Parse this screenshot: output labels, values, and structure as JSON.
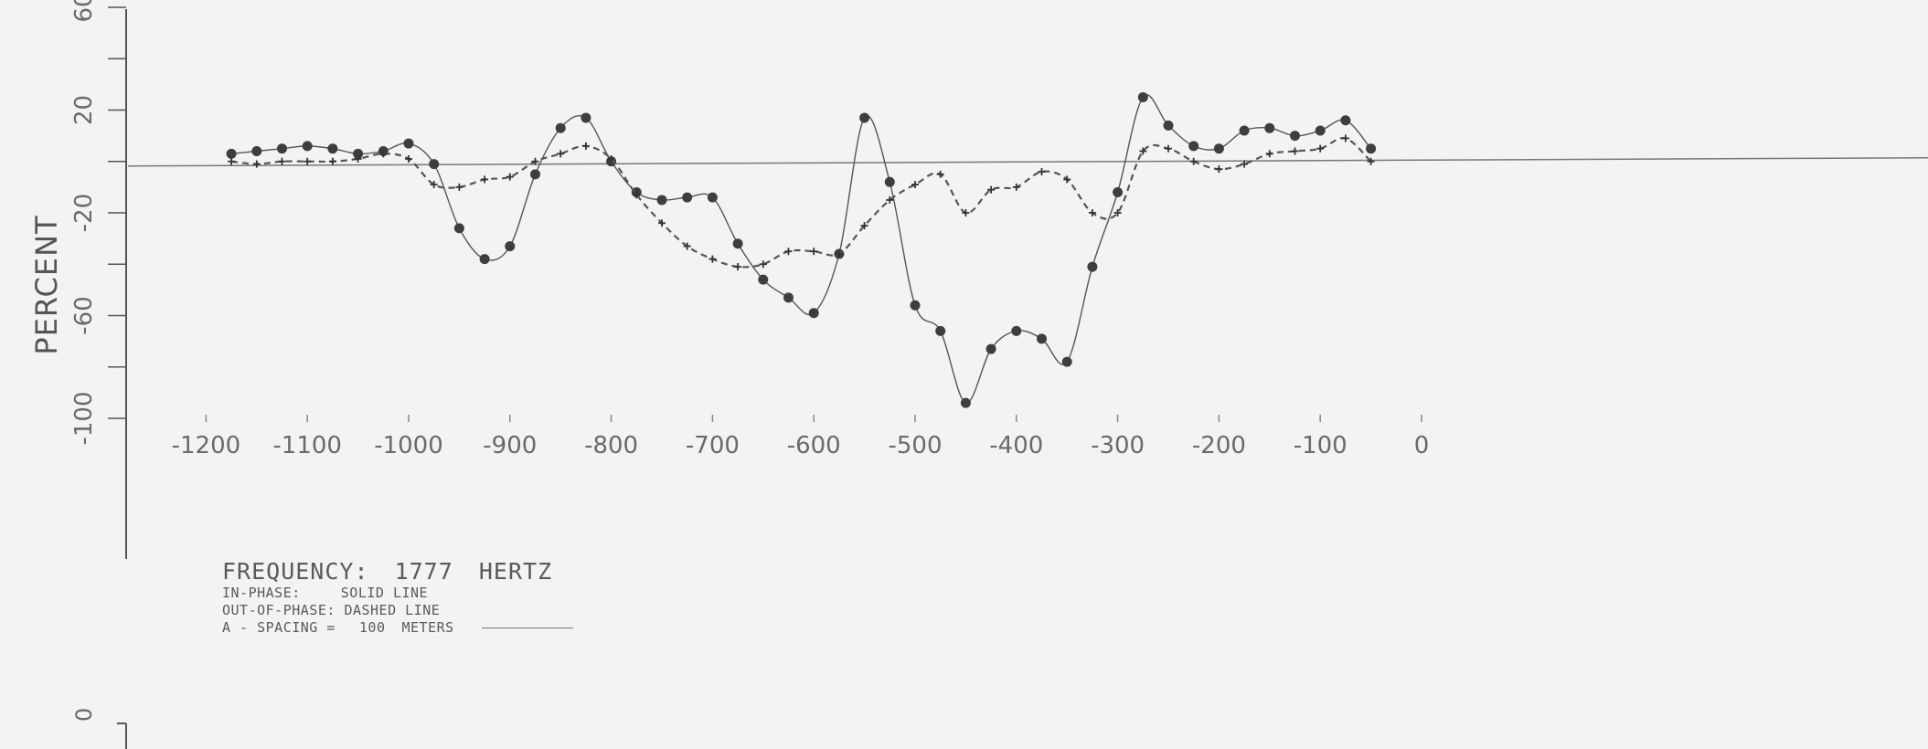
{
  "chart_data": {
    "type": "line",
    "title": "",
    "ylabel": "PERCENT",
    "xlabel": "",
    "xlim": [
      -1200,
      0
    ],
    "ylim": [
      -100,
      60
    ],
    "x_ticks": [
      "-1200",
      "-1100",
      "-1000",
      "-900",
      "-800",
      "-700",
      "-600",
      "-500",
      "-400",
      "-300",
      "-200",
      "-100",
      "0"
    ],
    "y_ticks": [
      "60",
      "20",
      "-20",
      "-60",
      "-100"
    ],
    "y_tick_values": [
      60,
      20,
      -20,
      -60,
      -100
    ],
    "x_tick_values": [
      -1200,
      -1100,
      -1000,
      -900,
      -800,
      -700,
      -600,
      -500,
      -400,
      -300,
      -200,
      -100,
      0
    ],
    "grid": false,
    "zero_line": true,
    "series": [
      {
        "style": "solid",
        "marker": "dot",
        "color": "#555555",
        "x": [
          -1175,
          -1150,
          -1125,
          -1100,
          -1075,
          -1050,
          -1025,
          -1000,
          -975,
          -950,
          -925,
          -900,
          -875,
          -850,
          -825,
          -800,
          -775,
          -750,
          -725,
          -700,
          -675,
          -650,
          -625,
          -600,
          -575,
          -550,
          -525,
          -500,
          -475,
          -450,
          -425,
          -400,
          -375,
          -350,
          -325,
          -300,
          -275,
          -250,
          -225,
          -200,
          -175,
          -150,
          -125,
          -100,
          -75,
          -50
        ],
        "y": [
          3,
          4,
          5,
          6,
          5,
          3,
          4,
          7,
          -1,
          -26,
          -38,
          -33,
          -5,
          13,
          17,
          0,
          -12,
          -15,
          -14,
          -14,
          -32,
          -46,
          -53,
          -59,
          -36,
          17,
          -8,
          -56,
          -66,
          -94,
          -73,
          -66,
          -69,
          -78,
          -41,
          -12,
          25,
          14,
          6,
          5,
          12,
          13,
          10,
          12,
          16,
          5
        ]
      },
      {
        "style": "dashed",
        "marker": "plus",
        "color": "#555555",
        "x": [
          -1175,
          -1150,
          -1125,
          -1100,
          -1075,
          -1050,
          -1025,
          -1000,
          -975,
          -950,
          -925,
          -900,
          -875,
          -850,
          -825,
          -800,
          -775,
          -750,
          -725,
          -700,
          -675,
          -650,
          -625,
          -600,
          -575,
          -550,
          -525,
          -500,
          -475,
          -450,
          -425,
          -400,
          -375,
          -350,
          -325,
          -300,
          -275,
          -250,
          -225,
          -200,
          -175,
          -150,
          -125,
          -100,
          -75,
          -50
        ],
        "y": [
          0,
          -1,
          0,
          0,
          0,
          1,
          3,
          1,
          -9,
          -10,
          -7,
          -6,
          0,
          3,
          6,
          1,
          -13,
          -24,
          -33,
          -38,
          -41,
          -40,
          -35,
          -35,
          -36,
          -25,
          -15,
          -9,
          -5,
          -20,
          -11,
          -10,
          -4,
          -7,
          -20,
          -20,
          4,
          5,
          0,
          -3,
          -1,
          3,
          4,
          5,
          9,
          0
        ]
      }
    ]
  },
  "legend": {
    "frequency_label": "FREQUENCY:",
    "frequency_value": "1777",
    "frequency_unit": "HERTZ",
    "in_phase_label": "IN-PHASE:",
    "in_phase_value": "SOLID LINE",
    "out_phase_label": "OUT-OF-PHASE:",
    "out_phase_value": "DASHED LINE",
    "spacing_label": "A - SPACING =",
    "spacing_value": "100",
    "spacing_unit": "METERS"
  },
  "second_axis_tick": "0"
}
